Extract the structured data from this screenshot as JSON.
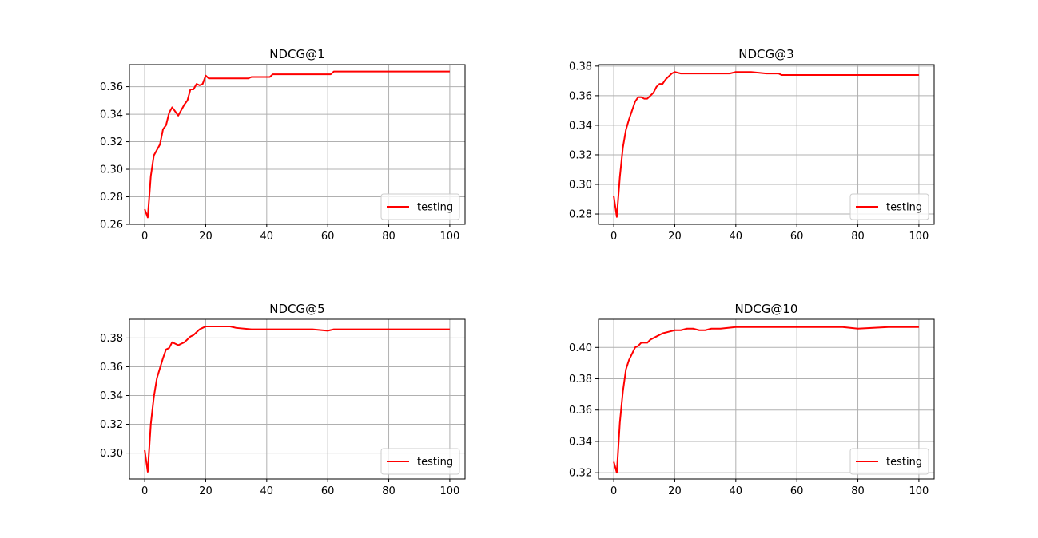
{
  "figure": {
    "background": "#ffffff"
  },
  "chart_data": [
    {
      "type": "line",
      "title": "NDCG@1",
      "xlabel": "",
      "ylabel": "",
      "xlim": [
        -5,
        105
      ],
      "ylim": [
        0.26,
        0.376
      ],
      "xticks": [
        0,
        20,
        40,
        60,
        80,
        100
      ],
      "yticks": [
        0.26,
        0.28,
        0.3,
        0.32,
        0.34,
        0.36
      ],
      "ytick_labels": [
        "0.26",
        "0.28",
        "0.30",
        "0.32",
        "0.34",
        "0.36"
      ],
      "grid": true,
      "legend_position": "lower right",
      "series": [
        {
          "name": "testing",
          "color": "#ff0000",
          "points": [
            [
              0,
              0.271
            ],
            [
              1,
              0.265
            ],
            [
              2,
              0.295
            ],
            [
              3,
              0.31
            ],
            [
              4,
              0.314
            ],
            [
              5,
              0.318
            ],
            [
              6,
              0.329
            ],
            [
              7,
              0.332
            ],
            [
              8,
              0.341
            ],
            [
              9,
              0.345
            ],
            [
              10,
              0.342
            ],
            [
              11,
              0.339
            ],
            [
              12,
              0.343
            ],
            [
              13,
              0.347
            ],
            [
              14,
              0.35
            ],
            [
              15,
              0.358
            ],
            [
              16,
              0.358
            ],
            [
              17,
              0.362
            ],
            [
              18,
              0.361
            ],
            [
              19,
              0.362
            ],
            [
              20,
              0.368
            ],
            [
              21,
              0.366
            ],
            [
              22,
              0.366
            ],
            [
              25,
              0.366
            ],
            [
              30,
              0.366
            ],
            [
              34,
              0.366
            ],
            [
              35,
              0.367
            ],
            [
              40,
              0.367
            ],
            [
              41,
              0.367
            ],
            [
              42,
              0.369
            ],
            [
              50,
              0.369
            ],
            [
              55,
              0.369
            ],
            [
              61,
              0.369
            ],
            [
              62,
              0.371
            ],
            [
              70,
              0.371
            ],
            [
              80,
              0.371
            ],
            [
              90,
              0.371
            ],
            [
              100,
              0.371
            ]
          ]
        }
      ]
    },
    {
      "type": "line",
      "title": "NDCG@3",
      "xlabel": "",
      "ylabel": "",
      "xlim": [
        -5,
        105
      ],
      "ylim": [
        0.273,
        0.381
      ],
      "xticks": [
        0,
        20,
        40,
        60,
        80,
        100
      ],
      "yticks": [
        0.28,
        0.3,
        0.32,
        0.34,
        0.36,
        0.38
      ],
      "ytick_labels": [
        "0.28",
        "0.30",
        "0.32",
        "0.34",
        "0.36",
        "0.38"
      ],
      "grid": true,
      "legend_position": "lower right",
      "series": [
        {
          "name": "testing",
          "color": "#ff0000",
          "points": [
            [
              0,
              0.292
            ],
            [
              1,
              0.278
            ],
            [
              2,
              0.305
            ],
            [
              3,
              0.325
            ],
            [
              4,
              0.337
            ],
            [
              5,
              0.344
            ],
            [
              6,
              0.35
            ],
            [
              7,
              0.356
            ],
            [
              8,
              0.359
            ],
            [
              9,
              0.359
            ],
            [
              10,
              0.358
            ],
            [
              11,
              0.358
            ],
            [
              12,
              0.36
            ],
            [
              13,
              0.362
            ],
            [
              14,
              0.366
            ],
            [
              15,
              0.368
            ],
            [
              16,
              0.368
            ],
            [
              17,
              0.371
            ],
            [
              18,
              0.373
            ],
            [
              19,
              0.375
            ],
            [
              20,
              0.376
            ],
            [
              22,
              0.375
            ],
            [
              24,
              0.375
            ],
            [
              25,
              0.375
            ],
            [
              30,
              0.375
            ],
            [
              35,
              0.375
            ],
            [
              38,
              0.375
            ],
            [
              40,
              0.376
            ],
            [
              42,
              0.376
            ],
            [
              45,
              0.376
            ],
            [
              50,
              0.375
            ],
            [
              54,
              0.375
            ],
            [
              55,
              0.374
            ],
            [
              60,
              0.374
            ],
            [
              62,
              0.374
            ],
            [
              65,
              0.374
            ],
            [
              70,
              0.374
            ],
            [
              80,
              0.374
            ],
            [
              90,
              0.374
            ],
            [
              100,
              0.374
            ]
          ]
        }
      ]
    },
    {
      "type": "line",
      "title": "NDCG@5",
      "xlabel": "",
      "ylabel": "",
      "xlim": [
        -5,
        105
      ],
      "ylim": [
        0.282,
        0.393
      ],
      "xticks": [
        0,
        20,
        40,
        60,
        80,
        100
      ],
      "yticks": [
        0.3,
        0.32,
        0.34,
        0.36,
        0.38
      ],
      "ytick_labels": [
        "0.30",
        "0.32",
        "0.34",
        "0.36",
        "0.38"
      ],
      "grid": true,
      "legend_position": "lower right",
      "series": [
        {
          "name": "testing",
          "color": "#ff0000",
          "points": [
            [
              0,
              0.302
            ],
            [
              1,
              0.287
            ],
            [
              2,
              0.32
            ],
            [
              3,
              0.339
            ],
            [
              4,
              0.352
            ],
            [
              5,
              0.359
            ],
            [
              6,
              0.366
            ],
            [
              7,
              0.372
            ],
            [
              8,
              0.373
            ],
            [
              9,
              0.377
            ],
            [
              10,
              0.376
            ],
            [
              11,
              0.375
            ],
            [
              12,
              0.376
            ],
            [
              13,
              0.377
            ],
            [
              14,
              0.379
            ],
            [
              15,
              0.381
            ],
            [
              16,
              0.382
            ],
            [
              17,
              0.384
            ],
            [
              18,
              0.386
            ],
            [
              19,
              0.387
            ],
            [
              20,
              0.388
            ],
            [
              22,
              0.388
            ],
            [
              24,
              0.388
            ],
            [
              26,
              0.388
            ],
            [
              28,
              0.388
            ],
            [
              30,
              0.387
            ],
            [
              35,
              0.386
            ],
            [
              40,
              0.386
            ],
            [
              45,
              0.386
            ],
            [
              50,
              0.386
            ],
            [
              55,
              0.386
            ],
            [
              60,
              0.385
            ],
            [
              62,
              0.386
            ],
            [
              70,
              0.386
            ],
            [
              80,
              0.386
            ],
            [
              90,
              0.386
            ],
            [
              100,
              0.386
            ]
          ]
        }
      ]
    },
    {
      "type": "line",
      "title": "NDCG@10",
      "xlabel": "",
      "ylabel": "",
      "xlim": [
        -5,
        105
      ],
      "ylim": [
        0.316,
        0.418
      ],
      "xticks": [
        0,
        20,
        40,
        60,
        80,
        100
      ],
      "yticks": [
        0.32,
        0.34,
        0.36,
        0.38,
        0.4
      ],
      "ytick_labels": [
        "0.32",
        "0.34",
        "0.36",
        "0.38",
        "0.40"
      ],
      "grid": true,
      "legend_position": "lower right",
      "series": [
        {
          "name": "testing",
          "color": "#ff0000",
          "points": [
            [
              0,
              0.327
            ],
            [
              1,
              0.32
            ],
            [
              2,
              0.352
            ],
            [
              3,
              0.372
            ],
            [
              4,
              0.386
            ],
            [
              5,
              0.392
            ],
            [
              6,
              0.396
            ],
            [
              7,
              0.4
            ],
            [
              8,
              0.401
            ],
            [
              9,
              0.403
            ],
            [
              10,
              0.403
            ],
            [
              11,
              0.403
            ],
            [
              12,
              0.405
            ],
            [
              14,
              0.407
            ],
            [
              16,
              0.409
            ],
            [
              18,
              0.41
            ],
            [
              20,
              0.411
            ],
            [
              22,
              0.411
            ],
            [
              24,
              0.412
            ],
            [
              26,
              0.412
            ],
            [
              28,
              0.411
            ],
            [
              30,
              0.411
            ],
            [
              32,
              0.412
            ],
            [
              35,
              0.412
            ],
            [
              40,
              0.413
            ],
            [
              45,
              0.413
            ],
            [
              50,
              0.413
            ],
            [
              55,
              0.413
            ],
            [
              60,
              0.413
            ],
            [
              65,
              0.413
            ],
            [
              70,
              0.413
            ],
            [
              75,
              0.413
            ],
            [
              80,
              0.412
            ],
            [
              90,
              0.413
            ],
            [
              100,
              0.413
            ]
          ]
        }
      ]
    }
  ]
}
